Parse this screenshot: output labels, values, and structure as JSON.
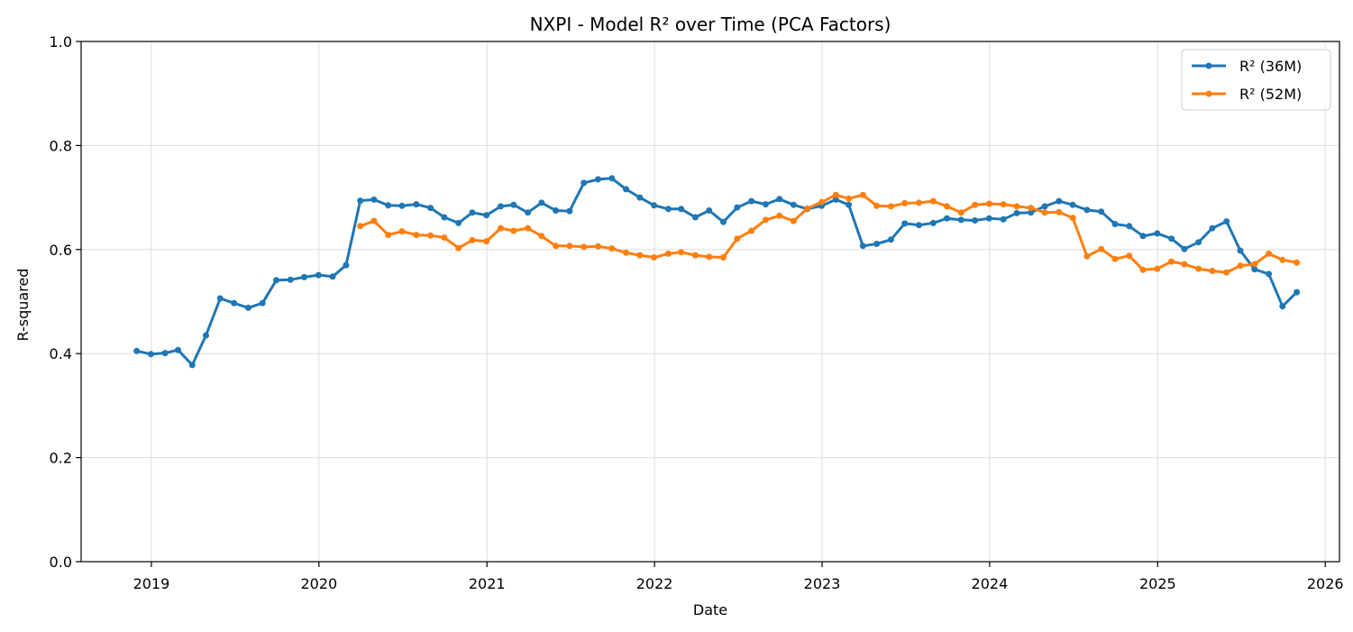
{
  "chart_data": {
    "type": "line",
    "title": "NXPI - Model R² over Time (PCA Factors)",
    "xlabel": "Date",
    "ylabel": "R-squared",
    "ylim": [
      0,
      1
    ],
    "yticks": [
      "0.0",
      "0.2",
      "0.4",
      "0.6",
      "0.8",
      "1.0"
    ],
    "xlim": [
      "2018-08-01",
      "2026-02-01"
    ],
    "xticks": [
      {
        "label": "2019",
        "date": "2019-01-01"
      },
      {
        "label": "2020",
        "date": "2020-01-01"
      },
      {
        "label": "2021",
        "date": "2021-01-01"
      },
      {
        "label": "2022",
        "date": "2022-01-01"
      },
      {
        "label": "2023",
        "date": "2023-01-01"
      },
      {
        "label": "2024",
        "date": "2024-01-01"
      },
      {
        "label": "2025",
        "date": "2025-01-01"
      },
      {
        "label": "2026",
        "date": "2026-01-01"
      }
    ],
    "grid": true,
    "legend_position": "top-right",
    "series": [
      {
        "name": "R² (36M)",
        "color": "#1f77b4",
        "start": "2018-11-30",
        "values": [
          0.405,
          0.399,
          0.401,
          0.407,
          0.378,
          0.435,
          0.506,
          0.497,
          0.488,
          0.497,
          0.541,
          0.542,
          0.547,
          0.551,
          0.548,
          0.57,
          0.694,
          0.696,
          0.685,
          0.684,
          0.687,
          0.68,
          0.662,
          0.651,
          0.671,
          0.666,
          0.683,
          0.686,
          0.671,
          0.69,
          0.675,
          0.674,
          0.728,
          0.735,
          0.737,
          0.716,
          0.7,
          0.685,
          0.678,
          0.678,
          0.662,
          0.675,
          0.653,
          0.681,
          0.693,
          0.687,
          0.697,
          0.686,
          0.678,
          0.684,
          0.696,
          0.686,
          0.607,
          0.611,
          0.619,
          0.65,
          0.647,
          0.651,
          0.66,
          0.657,
          0.656,
          0.66,
          0.658,
          0.67,
          0.671,
          0.683,
          0.693,
          0.686,
          0.676,
          0.673,
          0.649,
          0.645,
          0.626,
          0.631,
          0.621,
          0.601,
          0.614,
          0.641,
          0.654,
          0.598,
          0.562,
          0.553,
          0.491,
          0.518
        ]
      },
      {
        "name": "R² (52M)",
        "color": "#ff7f0e",
        "start": "2020-03-31",
        "values": [
          0.645,
          0.655,
          0.628,
          0.635,
          0.628,
          0.627,
          0.623,
          0.603,
          0.618,
          0.616,
          0.641,
          0.636,
          0.641,
          0.626,
          0.607,
          0.607,
          0.605,
          0.606,
          0.602,
          0.594,
          0.589,
          0.585,
          0.592,
          0.595,
          0.589,
          0.586,
          0.585,
          0.621,
          0.636,
          0.657,
          0.665,
          0.655,
          0.679,
          0.691,
          0.705,
          0.698,
          0.705,
          0.684,
          0.683,
          0.689,
          0.69,
          0.693,
          0.683,
          0.671,
          0.686,
          0.688,
          0.687,
          0.683,
          0.68,
          0.671,
          0.672,
          0.661,
          0.587,
          0.601,
          0.582,
          0.588,
          0.561,
          0.563,
          0.577,
          0.572,
          0.563,
          0.559,
          0.556,
          0.569,
          0.572,
          0.592,
          0.58,
          0.575
        ]
      }
    ]
  }
}
